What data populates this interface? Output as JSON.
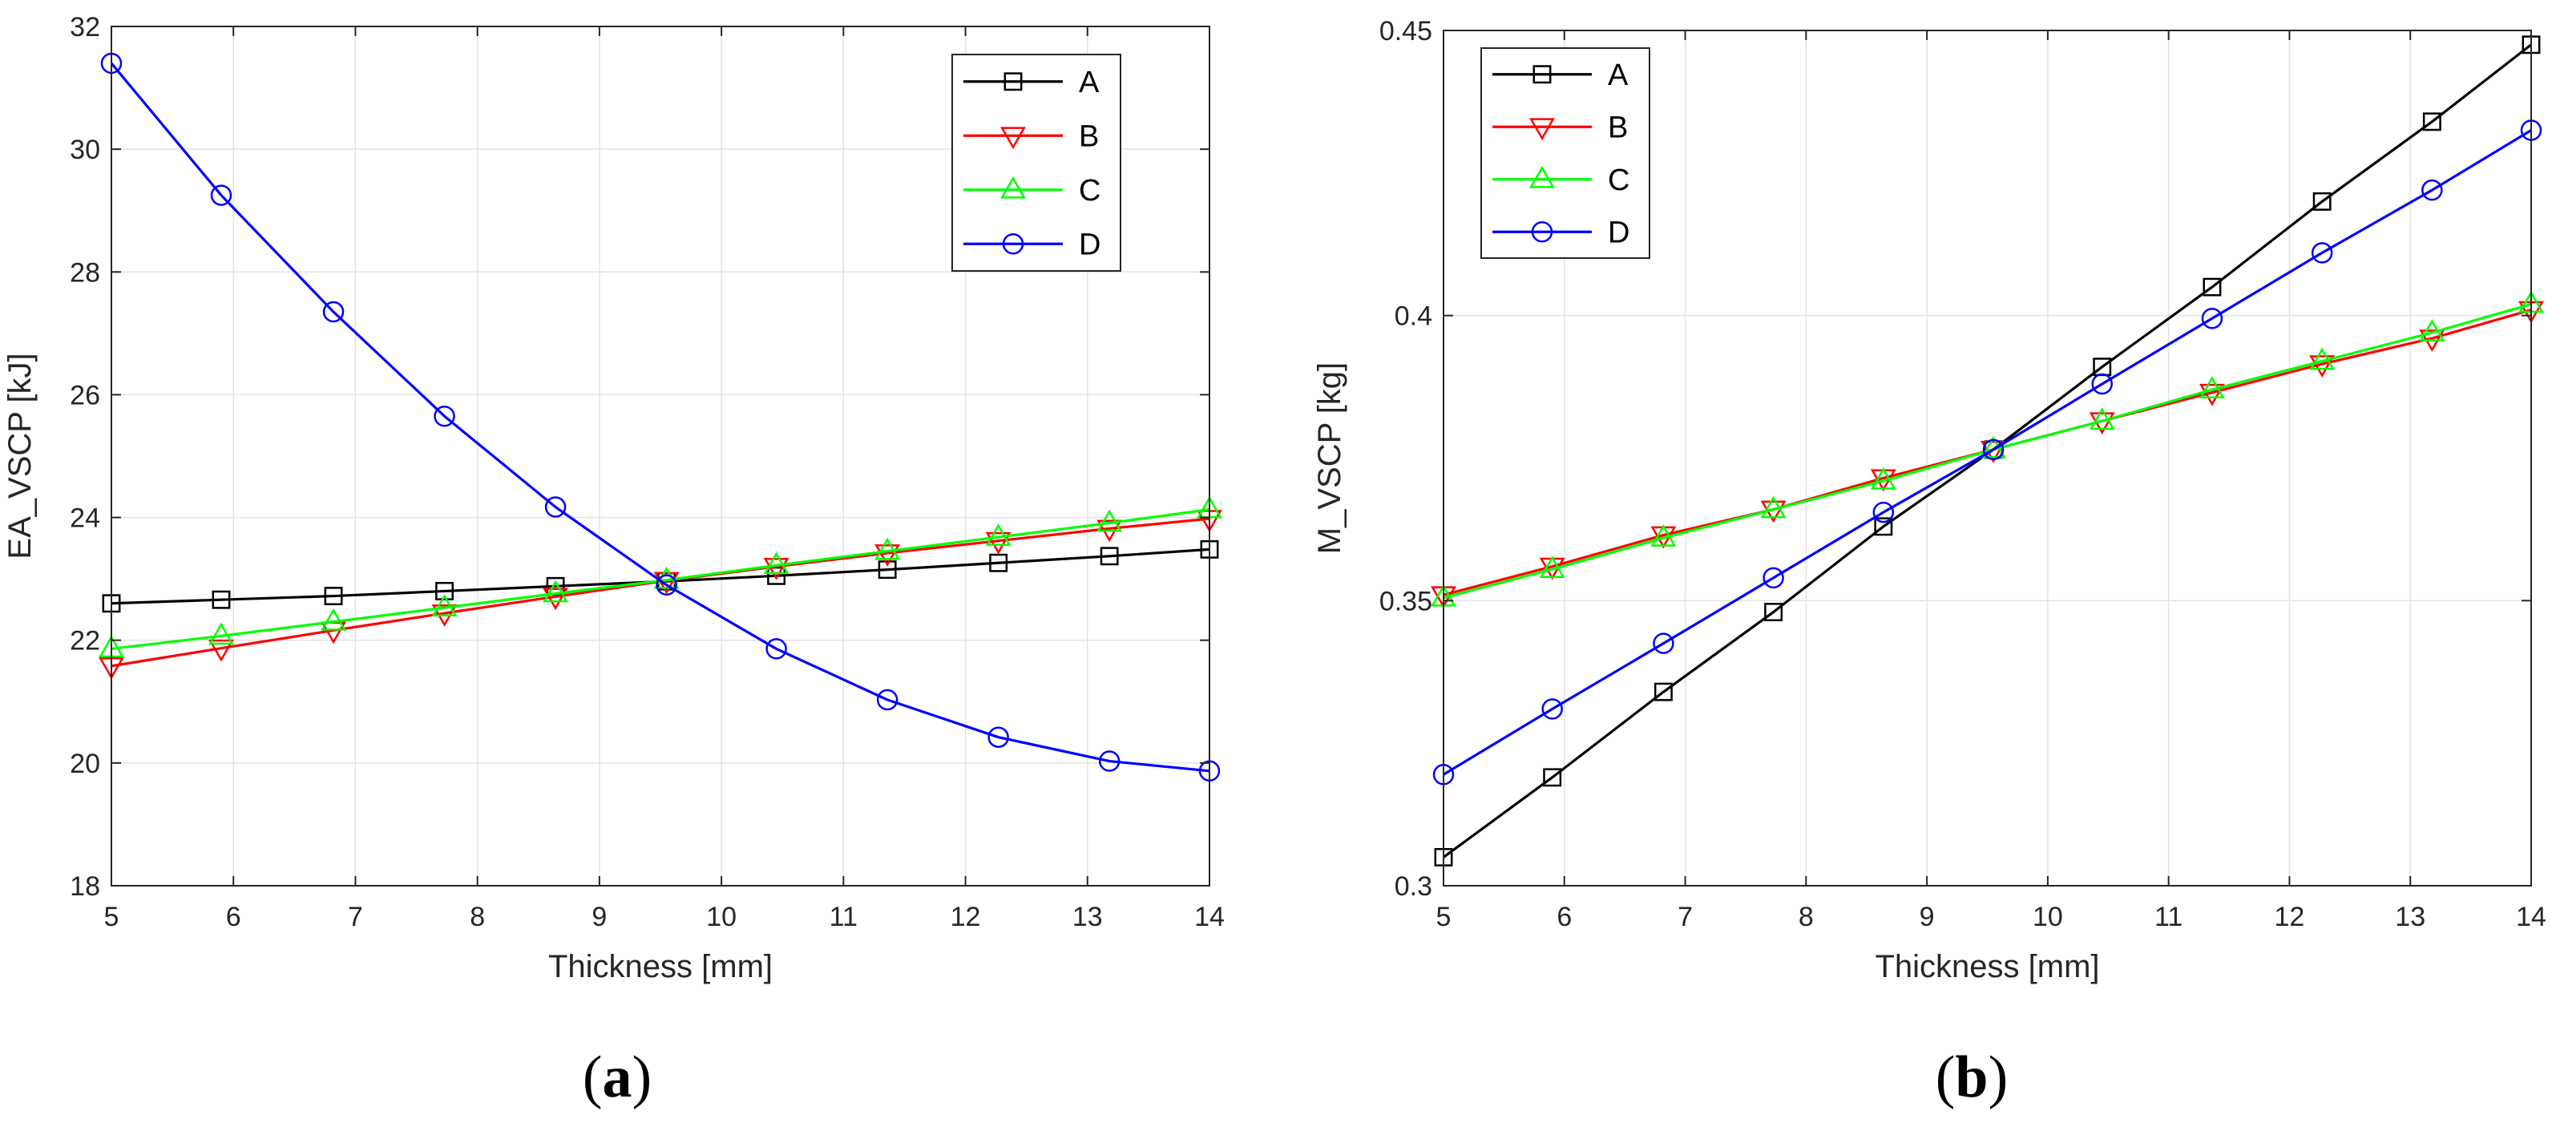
{
  "chart_data": [
    {
      "type": "line",
      "panel_label": "a",
      "xlabel": "Thickness [mm]",
      "ylabel": "EA_VSCP [kJ]",
      "xlim": [
        5,
        14
      ],
      "ylim": [
        18,
        32
      ],
      "xticks": [
        5,
        6,
        7,
        8,
        9,
        10,
        11,
        12,
        13,
        14
      ],
      "yticks": [
        18,
        20,
        22,
        24,
        26,
        28,
        30,
        32
      ],
      "grid": true,
      "legend_position": "top-right",
      "x": [
        5,
        5.9,
        6.82,
        7.73,
        8.64,
        9.55,
        10.45,
        11.36,
        12.27,
        13.18,
        14
      ],
      "series": [
        {
          "name": "A",
          "color": "#000000",
          "marker": "square",
          "values": [
            22.6,
            22.66,
            22.72,
            22.8,
            22.88,
            22.96,
            23.05,
            23.15,
            23.26,
            23.37,
            23.48
          ]
        },
        {
          "name": "B",
          "color": "#ff0000",
          "marker": "triangle-down",
          "values": [
            21.58,
            21.87,
            22.16,
            22.44,
            22.71,
            22.97,
            23.2,
            23.42,
            23.62,
            23.82,
            23.98
          ]
        },
        {
          "name": "C",
          "color": "#00ff00",
          "marker": "triangle-up",
          "values": [
            21.86,
            22.07,
            22.3,
            22.53,
            22.76,
            22.98,
            23.22,
            23.45,
            23.68,
            23.91,
            24.13
          ]
        },
        {
          "name": "D",
          "color": "#0000ff",
          "marker": "circle",
          "values": [
            31.4,
            29.25,
            27.35,
            25.65,
            24.17,
            22.9,
            21.86,
            21.03,
            20.42,
            20.03,
            19.87
          ]
        }
      ]
    },
    {
      "type": "line",
      "panel_label": "b",
      "xlabel": "Thickness [mm]",
      "ylabel": "M_VSCP [kg]",
      "xlim": [
        5,
        14
      ],
      "ylim": [
        0.3,
        0.45
      ],
      "xticks": [
        5,
        6,
        7,
        8,
        9,
        10,
        11,
        12,
        13,
        14
      ],
      "yticks": [
        0.3,
        0.35,
        0.4,
        0.45
      ],
      "grid": true,
      "legend_position": "top-left",
      "x": [
        5,
        5.9,
        6.82,
        7.73,
        8.64,
        9.55,
        10.45,
        11.36,
        12.27,
        13.18,
        14
      ],
      "series": [
        {
          "name": "A",
          "color": "#000000",
          "marker": "square",
          "values": [
            0.305,
            0.319,
            0.334,
            0.348,
            0.363,
            0.3765,
            0.391,
            0.405,
            0.42,
            0.434,
            0.4475
          ]
        },
        {
          "name": "B",
          "color": "#ff0000",
          "marker": "triangle-down",
          "values": [
            0.351,
            0.356,
            0.3615,
            0.366,
            0.3715,
            0.3765,
            0.3815,
            0.3865,
            0.3915,
            0.396,
            0.401
          ]
        },
        {
          "name": "C",
          "color": "#00ff00",
          "marker": "triangle-up",
          "values": [
            0.3505,
            0.3555,
            0.361,
            0.366,
            0.371,
            0.3765,
            0.3815,
            0.387,
            0.392,
            0.397,
            0.402
          ]
        },
        {
          "name": "D",
          "color": "#0000ff",
          "marker": "circle",
          "values": [
            0.3195,
            0.331,
            0.3425,
            0.354,
            0.3655,
            0.3765,
            0.388,
            0.3995,
            0.411,
            0.422,
            0.4325
          ]
        }
      ]
    }
  ]
}
